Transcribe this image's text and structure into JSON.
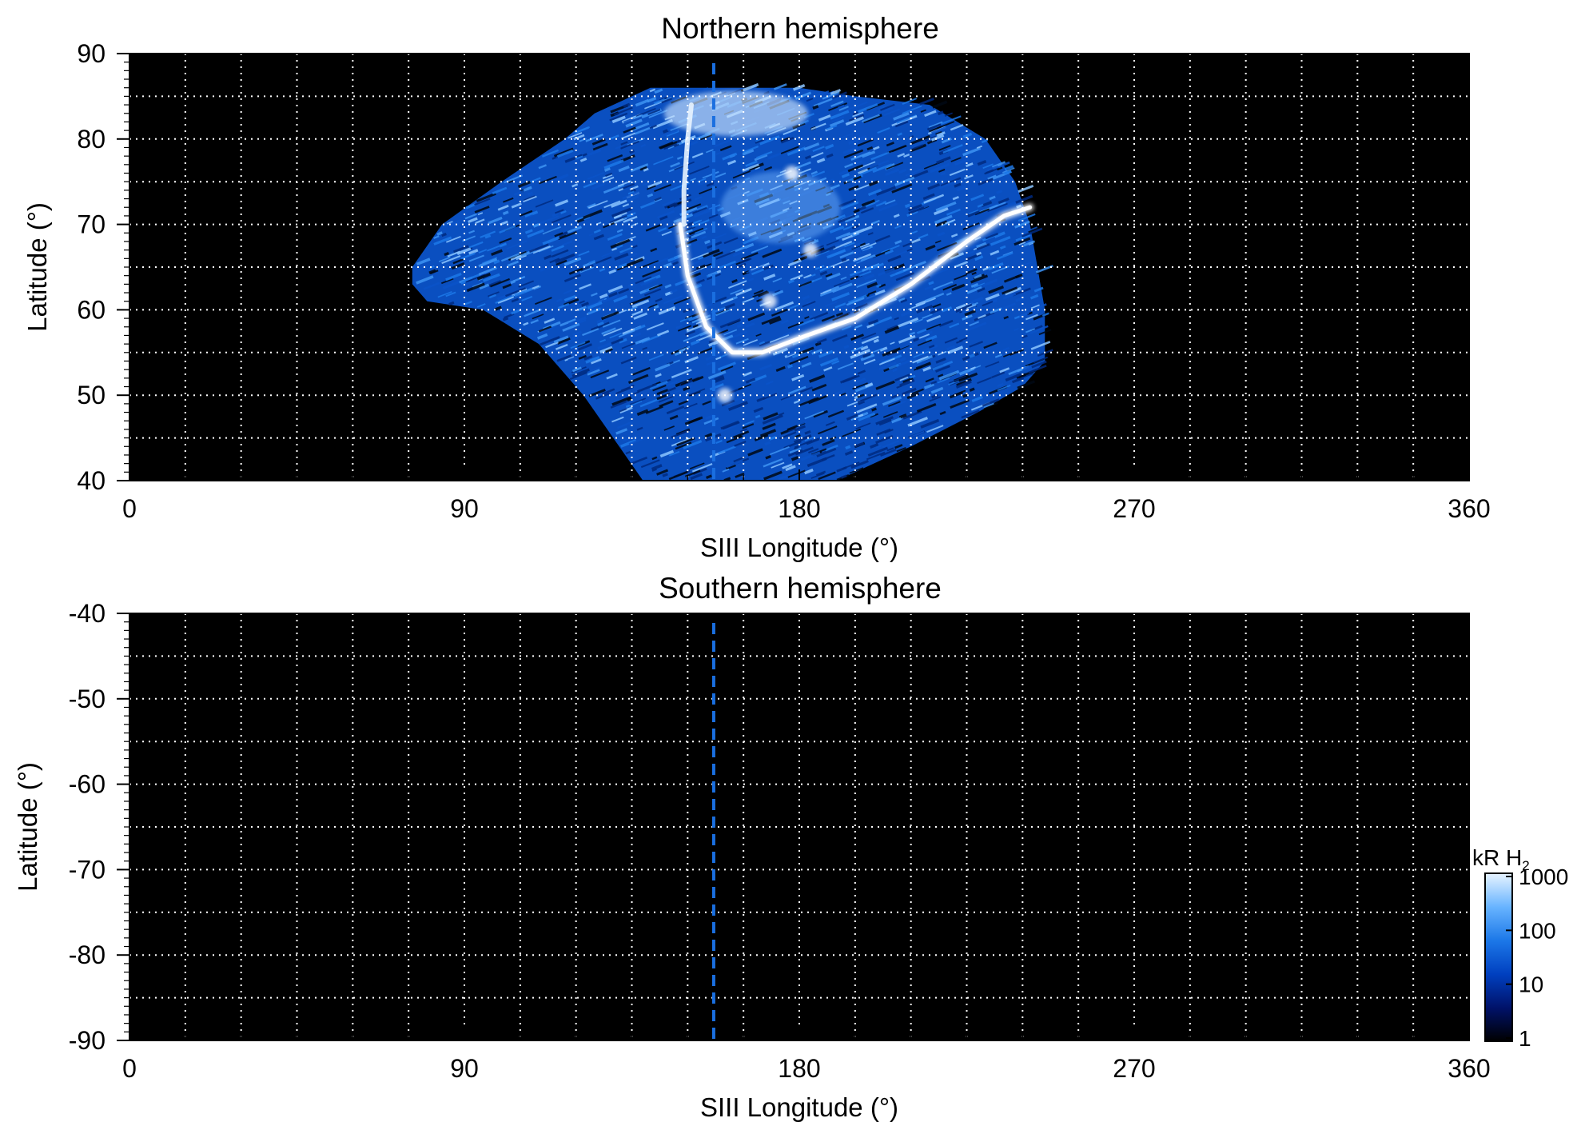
{
  "chart_data": [
    {
      "type": "heatmap",
      "title": "Northern hemisphere",
      "xlabel": "SIII Longitude (°)",
      "ylabel": "Latitude (°)",
      "xlim": [
        0,
        360
      ],
      "ylim": [
        40,
        90
      ],
      "xticks": [
        "0",
        "90",
        "180",
        "270",
        "360"
      ],
      "yticks": [
        "40",
        "50",
        "60",
        "70",
        "80",
        "90"
      ],
      "grid": true,
      "grid_dx": 15,
      "grid_dy": 5,
      "background": "#000000",
      "dashed_longitude": 157,
      "dashed_color": "#1a6fe0",
      "emission_region": {
        "boundary": [
          [
            76,
            65
          ],
          [
            84,
            70
          ],
          [
            100,
            75
          ],
          [
            117,
            80
          ],
          [
            125,
            83
          ],
          [
            140,
            86
          ],
          [
            160,
            86
          ],
          [
            180,
            86
          ],
          [
            195,
            85
          ],
          [
            215,
            84
          ],
          [
            230,
            80
          ],
          [
            238,
            75
          ],
          [
            242,
            70
          ],
          [
            244,
            65
          ],
          [
            246,
            60
          ],
          [
            246,
            54
          ],
          [
            240,
            51
          ],
          [
            228,
            48
          ],
          [
            210,
            44
          ],
          [
            195,
            41
          ],
          [
            190,
            40
          ],
          [
            138,
            40
          ],
          [
            130,
            45
          ],
          [
            122,
            50
          ],
          [
            110,
            56
          ],
          [
            95,
            60
          ],
          [
            80,
            61
          ],
          [
            76,
            63
          ]
        ],
        "main_oval": [
          [
            148,
            70
          ],
          [
            150,
            64
          ],
          [
            155,
            58
          ],
          [
            162,
            55
          ],
          [
            170,
            55
          ],
          [
            182,
            57
          ],
          [
            195,
            59
          ],
          [
            210,
            63
          ],
          [
            225,
            68
          ],
          [
            235,
            71
          ],
          [
            242,
            72
          ]
        ],
        "polar_arc": [
          [
            151,
            84
          ],
          [
            150,
            80
          ],
          [
            149,
            74
          ],
          [
            149,
            70
          ]
        ],
        "bright_spots": [
          [
            172,
            61
          ],
          [
            178,
            76
          ],
          [
            183,
            67
          ],
          [
            160,
            50
          ]
        ]
      }
    },
    {
      "type": "heatmap",
      "title": "Southern hemisphere",
      "xlabel": "SIII Longitude (°)",
      "ylabel": "Latitude (°)",
      "xlim": [
        0,
        360
      ],
      "ylim": [
        -90,
        -40
      ],
      "xticks": [
        "0",
        "90",
        "180",
        "270",
        "360"
      ],
      "yticks": [
        "-40",
        "-50",
        "-60",
        "-70",
        "-80",
        "-90"
      ],
      "grid": true,
      "grid_dx": 15,
      "grid_dy": 5,
      "background": "#000000",
      "dashed_longitude": 157,
      "dashed_color": "#1a6fe0"
    }
  ],
  "colorbar": {
    "label": "kR H",
    "label_subscript": "2",
    "scale": "log",
    "range": [
      1,
      1000
    ],
    "ticks": [
      "1",
      "10",
      "100",
      "1000"
    ],
    "colors": [
      "#000000",
      "#00126a",
      "#0040c0",
      "#1c78e8",
      "#68b4ff",
      "#e8f4ff"
    ]
  }
}
